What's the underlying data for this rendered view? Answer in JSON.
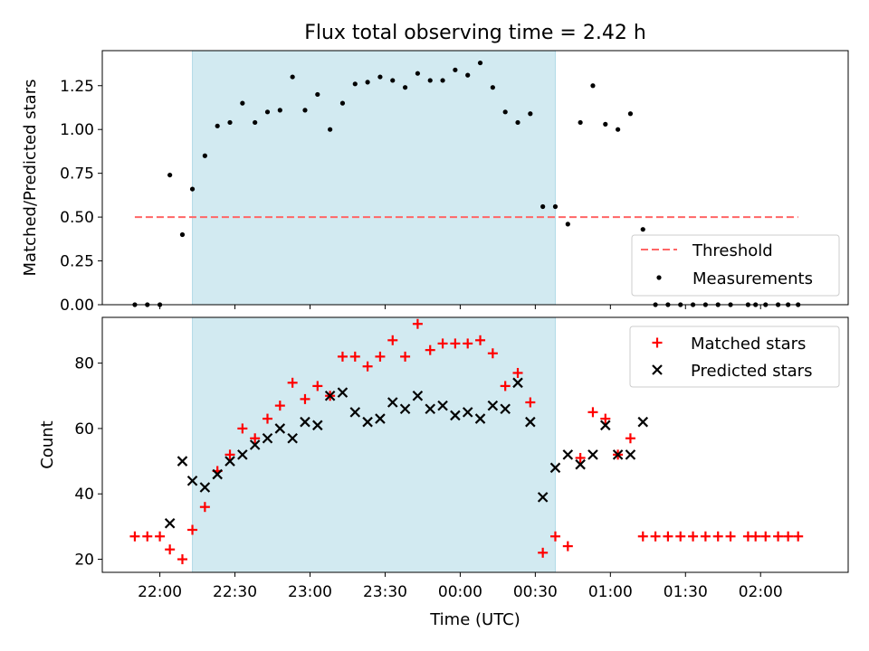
{
  "title": "Flux total observing time = 2.42 h",
  "colors": {
    "shade": "#add8e6",
    "threshold": "#ff6666",
    "measurement": "#000000",
    "matched": "#ff0000",
    "predicted": "#000000"
  },
  "chart_data": [
    {
      "type": "scatter",
      "ylabel": "Matched/Predicted stars",
      "xlabel": "",
      "xlim": [
        "21:37",
        "02:35"
      ],
      "ylim": [
        0,
        1.45
      ],
      "yticks": [
        "0.00",
        "0.25",
        "0.50",
        "0.75",
        "1.00",
        "1.25"
      ],
      "shaded_interval": [
        "22:13",
        "00:38"
      ],
      "legend": {
        "position": "lower-right",
        "entries": [
          "Threshold",
          "Measurements"
        ]
      },
      "threshold": {
        "name": "Threshold",
        "value": 0.5,
        "x": [
          "21:50",
          "02:15"
        ]
      },
      "measurements": {
        "name": "Measurements",
        "x": [
          "21:50",
          "21:55",
          "22:00",
          "22:04",
          "22:09",
          "22:13",
          "22:18",
          "22:23",
          "22:28",
          "22:33",
          "22:38",
          "22:43",
          "22:48",
          "22:53",
          "22:58",
          "23:03",
          "23:08",
          "23:13",
          "23:18",
          "23:23",
          "23:28",
          "23:33",
          "23:38",
          "23:43",
          "23:48",
          "23:53",
          "23:58",
          "24:03",
          "24:08",
          "24:13",
          "24:18",
          "24:23",
          "24:28",
          "24:33",
          "24:38",
          "24:43",
          "24:48",
          "24:53",
          "24:58",
          "25:03",
          "25:08",
          "25:13",
          "25:18",
          "25:23",
          "25:28",
          "25:33",
          "25:38",
          "25:43",
          "25:48",
          "25:55",
          "25:58",
          "26:02",
          "26:07",
          "26:11",
          "26:15"
        ],
        "y": [
          0,
          0,
          0,
          0.74,
          0.4,
          0.66,
          0.85,
          1.02,
          1.04,
          1.15,
          1.04,
          1.1,
          1.11,
          1.3,
          1.11,
          1.2,
          1.0,
          1.15,
          1.26,
          1.27,
          1.3,
          1.28,
          1.24,
          1.32,
          1.28,
          1.28,
          1.34,
          1.31,
          1.38,
          1.24,
          1.1,
          1.04,
          1.09,
          0.56,
          0.56,
          0.46,
          1.04,
          1.25,
          1.03,
          1.0,
          1.09,
          0.43,
          0,
          0,
          0,
          0,
          0,
          0,
          0,
          0,
          0,
          0,
          0,
          0,
          0
        ]
      }
    },
    {
      "type": "scatter",
      "xlabel": "Time (UTC)",
      "ylabel": "Count",
      "xlim": [
        "21:37",
        "02:35"
      ],
      "ylim": [
        16,
        94
      ],
      "yticks": [
        20,
        40,
        60,
        80
      ],
      "xticks": [
        "22:00",
        "22:30",
        "23:00",
        "23:30",
        "00:00",
        "00:30",
        "01:00",
        "01:30",
        "02:00"
      ],
      "shaded_interval": [
        "22:13",
        "00:38"
      ],
      "legend": {
        "position": "top-right",
        "entries": [
          "Matched stars",
          "Predicted stars"
        ]
      },
      "series": [
        {
          "name": "Matched stars",
          "marker": "plus",
          "x": [
            "21:50",
            "21:55",
            "22:00",
            "22:04",
            "22:09",
            "22:13",
            "22:18",
            "22:23",
            "22:28",
            "22:33",
            "22:38",
            "22:43",
            "22:48",
            "22:53",
            "22:58",
            "23:03",
            "23:08",
            "23:13",
            "23:18",
            "23:23",
            "23:28",
            "23:33",
            "23:38",
            "23:43",
            "23:48",
            "23:53",
            "23:58",
            "24:03",
            "24:08",
            "24:13",
            "24:18",
            "24:23",
            "24:28",
            "24:33",
            "24:38",
            "24:43",
            "24:48",
            "24:53",
            "24:58",
            "25:03",
            "25:08",
            "25:13",
            "25:18",
            "25:23",
            "25:28",
            "25:33",
            "25:38",
            "25:43",
            "25:48",
            "25:55",
            "25:58",
            "26:02",
            "26:07",
            "26:11",
            "26:15"
          ],
          "values": [
            27,
            27,
            27,
            23,
            20,
            29,
            36,
            47,
            52,
            60,
            57,
            63,
            67,
            74,
            69,
            73,
            70,
            82,
            82,
            79,
            82,
            87,
            82,
            92,
            84,
            86,
            86,
            86,
            87,
            83,
            73,
            77,
            68,
            22,
            27,
            24,
            51,
            65,
            63,
            52,
            57,
            27,
            27,
            27,
            27,
            27,
            27,
            27,
            27,
            27,
            27,
            27,
            27,
            27,
            27
          ]
        },
        {
          "name": "Predicted stars",
          "marker": "x",
          "x": [
            "22:04",
            "22:09",
            "22:13",
            "22:18",
            "22:23",
            "22:28",
            "22:33",
            "22:38",
            "22:43",
            "22:48",
            "22:53",
            "22:58",
            "23:03",
            "23:08",
            "23:13",
            "23:18",
            "23:23",
            "23:28",
            "23:33",
            "23:38",
            "23:43",
            "23:48",
            "23:53",
            "23:58",
            "24:03",
            "24:08",
            "24:13",
            "24:18",
            "24:23",
            "24:28",
            "24:33",
            "24:38",
            "24:43",
            "24:48",
            "24:53",
            "24:58",
            "25:03",
            "25:08",
            "25:13"
          ],
          "values": [
            31,
            50,
            44,
            42,
            46,
            50,
            52,
            55,
            57,
            60,
            57,
            62,
            61,
            70,
            71,
            65,
            62,
            63,
            68,
            66,
            70,
            66,
            67,
            64,
            65,
            63,
            67,
            66,
            74,
            62,
            39,
            48,
            52,
            49,
            52,
            61,
            52,
            52,
            62
          ]
        }
      ]
    }
  ]
}
